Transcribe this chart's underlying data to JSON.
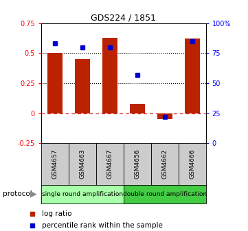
{
  "title": "GDS224 / 1851",
  "samples": [
    "GSM4657",
    "GSM4663",
    "GSM4667",
    "GSM4656",
    "GSM4662",
    "GSM4666"
  ],
  "log_ratios": [
    0.5,
    0.45,
    0.63,
    0.08,
    -0.05,
    0.62
  ],
  "percentile_ranks": [
    83,
    80,
    80,
    57,
    22,
    85
  ],
  "bar_color": "#bb2200",
  "dot_color": "#0000cc",
  "protocol_groups": [
    {
      "label": "single round amplification",
      "start": 0,
      "end": 3,
      "color": "#aaffaa"
    },
    {
      "label": "double round amplification",
      "start": 3,
      "end": 6,
      "color": "#44cc44"
    }
  ],
  "ylim_left": [
    -0.25,
    0.75
  ],
  "ylim_right": [
    0,
    100
  ],
  "yticks_left": [
    -0.25,
    0.0,
    0.25,
    0.5,
    0.75
  ],
  "ytick_labels_left": [
    "-0.25",
    "0",
    "0.25",
    "0.5",
    "0.75"
  ],
  "yticks_right": [
    0,
    25,
    50,
    75,
    100
  ],
  "ytick_labels_right": [
    "0",
    "25",
    "50",
    "75",
    "100%"
  ],
  "legend_items": [
    {
      "label": "log ratio",
      "color": "#bb2200"
    },
    {
      "label": "percentile rank within the sample",
      "color": "#0000cc"
    }
  ],
  "protocol_label": "protocol",
  "bar_width": 0.55,
  "sample_box_color": "#cccccc"
}
